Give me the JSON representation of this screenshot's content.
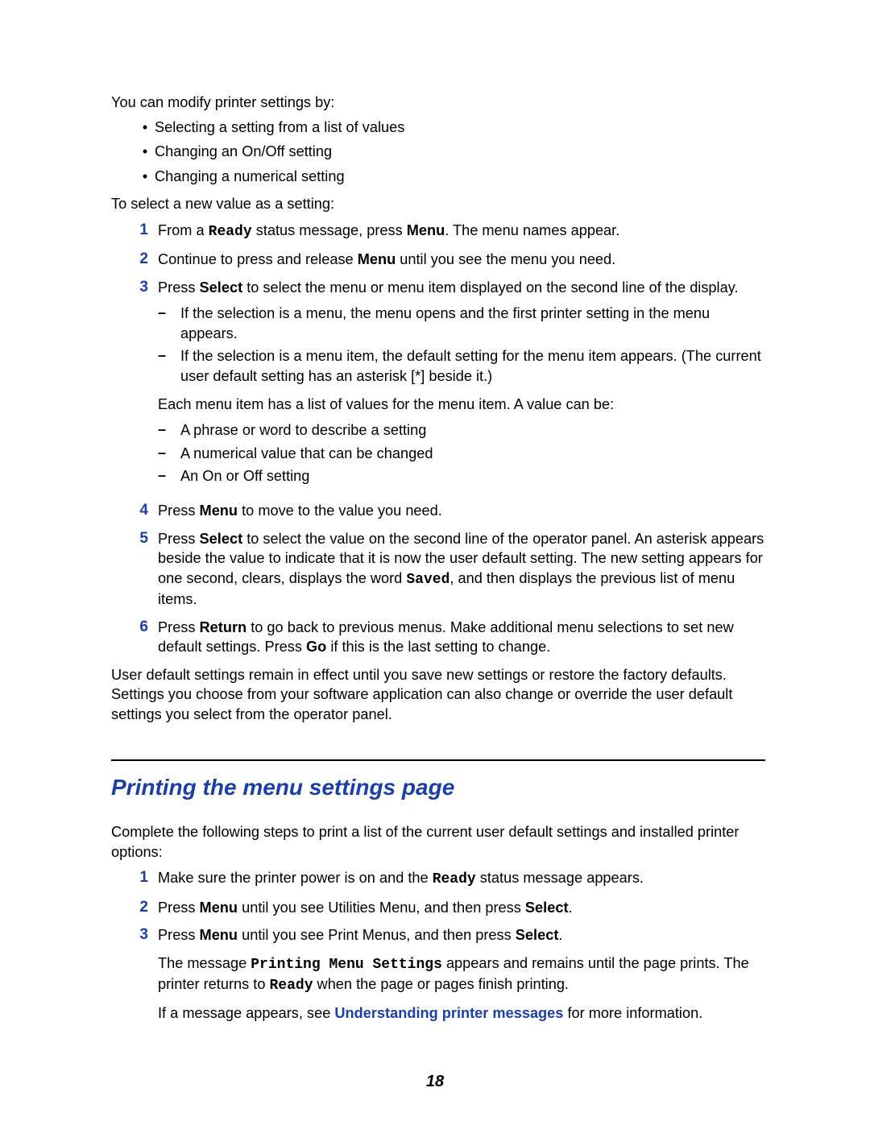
{
  "intro1": "You can modify printer settings by:",
  "introBullets": [
    "Selecting a setting from a list of values",
    "Changing an On/Off setting",
    "Changing a numerical setting"
  ],
  "intro2": "To select a new value as a setting:",
  "steps": {
    "s1_a": "From a ",
    "s1_ready": "Ready",
    "s1_b": " status message, press ",
    "s1_menu": "Menu",
    "s1_c": ". The menu names appear.",
    "s2_a": "Continue to press and release ",
    "s2_menu": "Menu",
    "s2_b": " until you see the menu you need.",
    "s3_a": "Press ",
    "s3_select": "Select",
    "s3_b": " to select the menu or menu item displayed on the second line of the display.",
    "s3_sub1": "If the selection is a menu, the menu opens and the first printer setting in the menu appears.",
    "s3_sub2": "If the selection is a menu item, the default setting for the menu item appears. (The current user default setting has an asterisk [*] beside it.)",
    "s3_mid": "Each menu item has a list of values for the menu item. A value can be:",
    "s3_vb1": "A phrase or word to describe a setting",
    "s3_vb2": "A numerical value that can be changed",
    "s3_vb3": "An On or Off setting",
    "s4_a": "Press ",
    "s4_menu": "Menu",
    "s4_b": " to move to the value you need.",
    "s5_a": "Press ",
    "s5_select": "Select",
    "s5_b": " to select the value on the second line of the operator panel. An asterisk appears beside the value to indicate that it is now the user default setting. The new setting appears for one second, clears, displays the word ",
    "s5_saved": "Saved",
    "s5_c": ", and then displays the previous list of menu items.",
    "s6_a": "Press ",
    "s6_return": "Return",
    "s6_b": " to go back to previous menus. Make additional menu selections to set new default settings. Press ",
    "s6_go": "Go",
    "s6_c": " if this is the last setting to change."
  },
  "outro1": "User default settings remain in effect until you save new settings or restore the factory defaults. Settings you choose from your software application can also change or override the user default settings you select from the operator panel.",
  "sectionTitle": "Printing the menu settings page",
  "sec_intro": "Complete the following steps to print a list of the current user default settings and installed printer options:",
  "sec": {
    "s1_a": "Make sure the printer power is on and the ",
    "s1_ready": "Ready",
    "s1_b": " status message appears.",
    "s2_a": "Press ",
    "s2_menu": "Menu",
    "s2_b": " until you see Utilities Menu, and then press ",
    "s2_select": "Select",
    "s2_c": ".",
    "s3_a": "Press ",
    "s3_menu": "Menu",
    "s3_b": " until you see Print Menus, and then press ",
    "s3_select": "Select",
    "s3_c": ".",
    "s3_p2_a": "The message ",
    "s3_p2_msg": "Printing Menu Settings",
    "s3_p2_b": " appears and remains until the page prints. The printer returns to ",
    "s3_p2_ready": "Ready",
    "s3_p2_c": " when the page or pages finish printing.",
    "s3_p3_a": "If a message appears, see ",
    "s3_p3_link": "Understanding printer messages",
    "s3_p3_b": " for more information."
  },
  "pageNumber": "18",
  "nums": {
    "n1": "1",
    "n2": "2",
    "n3": "3",
    "n4": "4",
    "n5": "5",
    "n6": "6"
  },
  "marks": {
    "bullet": "•",
    "dash": "–"
  }
}
